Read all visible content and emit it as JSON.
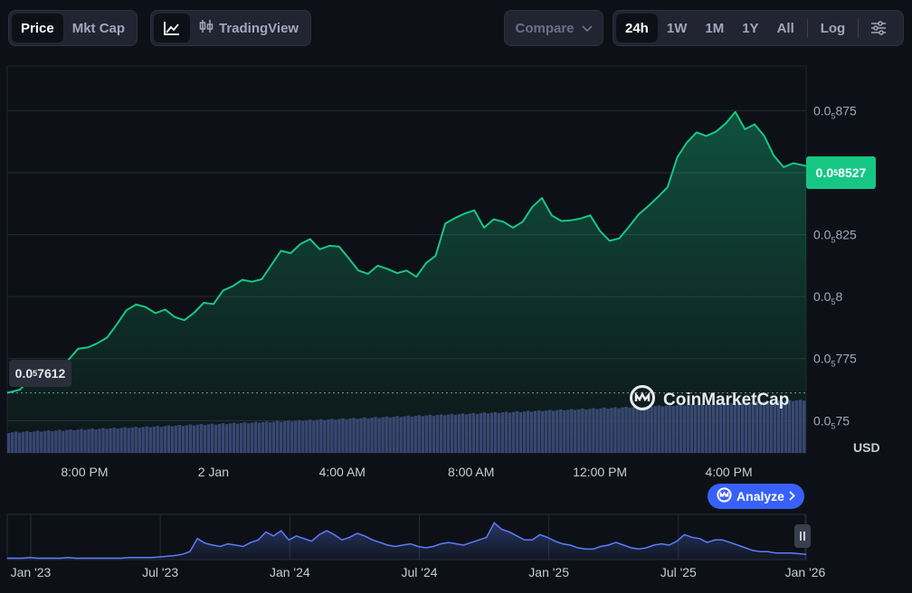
{
  "toolbar": {
    "view_tabs": [
      {
        "label": "Price",
        "active": true
      },
      {
        "label": "Mkt Cap",
        "active": false
      }
    ],
    "chart_style": {
      "line_icon": "line-chart-icon",
      "tradingview_icon": "candlestick-icon",
      "tradingview_label": "TradingView"
    },
    "compare": {
      "label": "Compare",
      "icon": "chevron-down-icon"
    },
    "ranges": [
      "24h",
      "1W",
      "1M",
      "1Y",
      "All"
    ],
    "active_range": "24h",
    "log_label": "Log",
    "settings_icon": "sliders-icon"
  },
  "colors": {
    "line": "#16c784",
    "volume": "#3a4271",
    "navigator": "#5c7cfa",
    "accent": "#3861fb"
  },
  "current_price": {
    "prefix": "0.0",
    "sub": "5",
    "digits": "8527"
  },
  "low_label": {
    "prefix": "0.0",
    "sub": "5",
    "digits": "7612"
  },
  "unit_label": "USD",
  "analyze": {
    "icon": "cmc-logo-icon",
    "label": "Analyze",
    "chevron": "chevron-right-icon"
  },
  "watermark": {
    "label": "CoinMarketCap",
    "icon": "cmc-logo-icon"
  },
  "navigator_pause_icon": "pause-icon",
  "chart_data": [
    {
      "type": "area",
      "ylim": [
        7.37e-06,
        8.93e-06
      ],
      "y_ticks": [
        {
          "prefix": "0.0",
          "sub": "5",
          "digits": "875",
          "value": 8.75e-06
        },
        {
          "prefix": "0.0",
          "sub": "5",
          "digits": "85",
          "value": 8.5e-06
        },
        {
          "prefix": "0.0",
          "sub": "5",
          "digits": "825",
          "value": 8.25e-06
        },
        {
          "prefix": "0.0",
          "sub": "5",
          "digits": "8",
          "value": 8e-06
        },
        {
          "prefix": "0.0",
          "sub": "5",
          "digits": "775",
          "value": 7.75e-06
        },
        {
          "prefix": "0.0",
          "sub": "5",
          "digits": "75",
          "value": 7.5e-06
        }
      ],
      "x_ticks": [
        "8:00 PM",
        "2 Jan",
        "4:00 AM",
        "8:00 AM",
        "12:00 PM",
        "4:00 PM"
      ],
      "x_tick_hours": [
        20,
        24,
        28,
        32,
        36,
        40
      ],
      "xlim_hours": [
        17.6,
        42.4
      ],
      "series": [
        {
          "x_hours": [
            17.6,
            18.0,
            18.3,
            18.6,
            18.9,
            19.2,
            19.5,
            19.8,
            20.1,
            20.4,
            20.7,
            21.0,
            21.3,
            21.6,
            21.9,
            22.2,
            22.5,
            22.8,
            23.1,
            23.4,
            23.7,
            24.0,
            24.3,
            24.6,
            24.9,
            25.2,
            25.5,
            25.8,
            26.1,
            26.4,
            26.7,
            27.0,
            27.3,
            27.6,
            27.9,
            28.2,
            28.5,
            28.8,
            29.1,
            29.4,
            29.7,
            30.0,
            30.3,
            30.6,
            30.9,
            31.2,
            31.5,
            31.8,
            32.1,
            32.4,
            32.7,
            33.0,
            33.3,
            33.6,
            33.9,
            34.2,
            34.5,
            34.8,
            35.1,
            35.4,
            35.7,
            36.0,
            36.3,
            36.6,
            36.9,
            37.2,
            37.5,
            37.8,
            38.1,
            38.4,
            38.7,
            39.0,
            39.3,
            39.6,
            39.9,
            40.2,
            40.5,
            40.8,
            41.1,
            41.4,
            41.7,
            42.0,
            42.4
          ],
          "values": [
            0.007612,
            0.007625,
            0.007668,
            0.007681,
            0.00765,
            0.007713,
            0.007745,
            0.00779,
            0.007795,
            0.007812,
            0.007835,
            0.007888,
            0.007945,
            0.007968,
            0.007958,
            0.007933,
            0.007948,
            0.007918,
            0.007905,
            0.007935,
            0.007975,
            0.00797,
            0.008025,
            0.008042,
            0.008068,
            0.00806,
            0.00807,
            0.008128,
            0.008185,
            0.008175,
            0.008212,
            0.008232,
            0.008191,
            0.008205,
            0.008202,
            0.008155,
            0.008105,
            0.008092,
            0.008125,
            0.008112,
            0.008095,
            0.008105,
            0.00808,
            0.008135,
            0.008165,
            0.008295,
            0.008317,
            0.008335,
            0.008348,
            0.008278,
            0.008312,
            0.008302,
            0.008278,
            0.008302,
            0.008362,
            0.008398,
            0.008328,
            0.008305,
            0.008308,
            0.008315,
            0.008328,
            0.008265,
            0.008225,
            0.008235,
            0.008282,
            0.008332,
            0.008365,
            0.008402,
            0.008442,
            0.008562,
            0.008622,
            0.008662,
            0.008648,
            0.008665,
            0.008698,
            0.008745,
            0.008675,
            0.008695,
            0.008648,
            0.008568,
            0.008522,
            0.008538,
            0.008527
          ]
        }
      ],
      "value_scale": 0.001
    },
    {
      "type": "area",
      "x_ticks": [
        "Jan '23",
        "Jul '23",
        "Jan '24",
        "Jul '24",
        "Jan '25",
        "Jul '25",
        "Jan '26"
      ],
      "series": [
        {
          "values": [
            0.02,
            0.02,
            0.02,
            0.03,
            0.02,
            0.02,
            0.02,
            0.02,
            0.03,
            0.02,
            0.02,
            0.02,
            0.02,
            0.02,
            0.02,
            0.02,
            0.03,
            0.03,
            0.03,
            0.03,
            0.04,
            0.05,
            0.06,
            0.08,
            0.12,
            0.32,
            0.25,
            0.22,
            0.2,
            0.24,
            0.22,
            0.2,
            0.26,
            0.3,
            0.42,
            0.36,
            0.44,
            0.3,
            0.36,
            0.32,
            0.28,
            0.38,
            0.44,
            0.38,
            0.3,
            0.34,
            0.4,
            0.36,
            0.3,
            0.26,
            0.22,
            0.2,
            0.22,
            0.24,
            0.2,
            0.18,
            0.2,
            0.24,
            0.26,
            0.24,
            0.22,
            0.26,
            0.3,
            0.34,
            0.56,
            0.46,
            0.42,
            0.36,
            0.3,
            0.3,
            0.38,
            0.34,
            0.28,
            0.24,
            0.22,
            0.18,
            0.16,
            0.16,
            0.2,
            0.22,
            0.26,
            0.22,
            0.18,
            0.16,
            0.18,
            0.22,
            0.24,
            0.22,
            0.28,
            0.38,
            0.34,
            0.32,
            0.26,
            0.3,
            0.3,
            0.26,
            0.22,
            0.18,
            0.14,
            0.12,
            0.12,
            0.1,
            0.1,
            0.1,
            0.09,
            0.08
          ]
        }
      ]
    }
  ]
}
